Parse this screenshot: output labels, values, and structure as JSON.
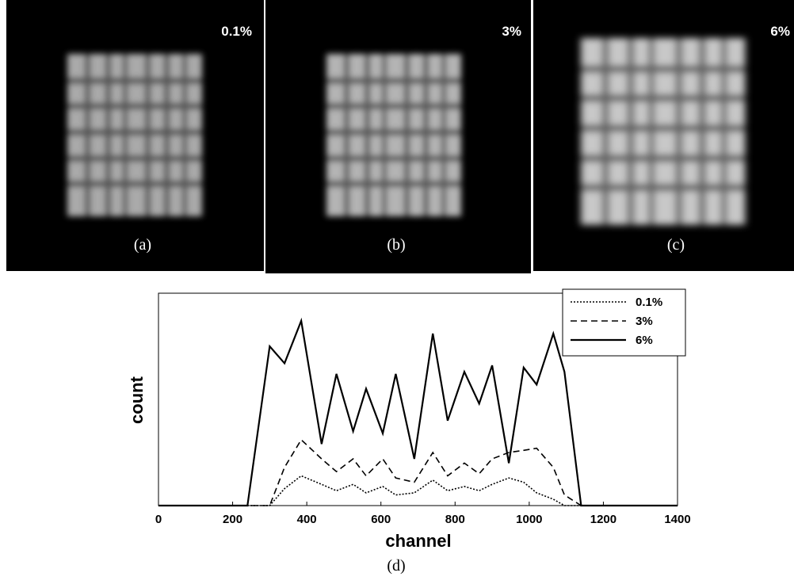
{
  "panels": [
    {
      "label": "0.1%",
      "caption": "(a)"
    },
    {
      "label": "3%",
      "caption": "(b)"
    },
    {
      "label": "6%",
      "caption": "(c)"
    }
  ],
  "caption": "(d)",
  "chart_data": {
    "type": "line",
    "x_label": "channel",
    "y_label": "count",
    "x": [
      0,
      240,
      300,
      340,
      385,
      440,
      480,
      525,
      560,
      605,
      640,
      690,
      740,
      780,
      825,
      865,
      900,
      945,
      985,
      1020,
      1065,
      1095,
      1140,
      1400
    ],
    "series": [
      {
        "name": "0.1%",
        "color": "#000000",
        "linestyle": "dotted",
        "values": [
          0,
          0,
          0,
          8,
          14,
          10,
          7,
          10,
          6,
          9,
          5,
          6,
          12,
          7,
          9,
          7,
          10,
          13,
          11,
          6,
          3,
          0,
          0,
          0
        ]
      },
      {
        "name": "3%",
        "color": "#000000",
        "linestyle": "dashed",
        "values": [
          0,
          0,
          0,
          18,
          31,
          22,
          16,
          22,
          14,
          22,
          13,
          11,
          25,
          14,
          20,
          15,
          22,
          25,
          26,
          27,
          18,
          5,
          0,
          0
        ]
      },
      {
        "name": "6%",
        "color": "#000000",
        "linestyle": "solid",
        "values": [
          0,
          0,
          75,
          67,
          87,
          29,
          62,
          35,
          55,
          34,
          62,
          22,
          81,
          40,
          63,
          48,
          66,
          20,
          65,
          57,
          81,
          63,
          0,
          0
        ]
      }
    ],
    "xlim": [
      0,
      1400
    ],
    "xticks": [
      0,
      200,
      400,
      600,
      800,
      1000,
      1200,
      1400
    ],
    "ylim": [
      0,
      100
    ],
    "legend": "upper right"
  }
}
